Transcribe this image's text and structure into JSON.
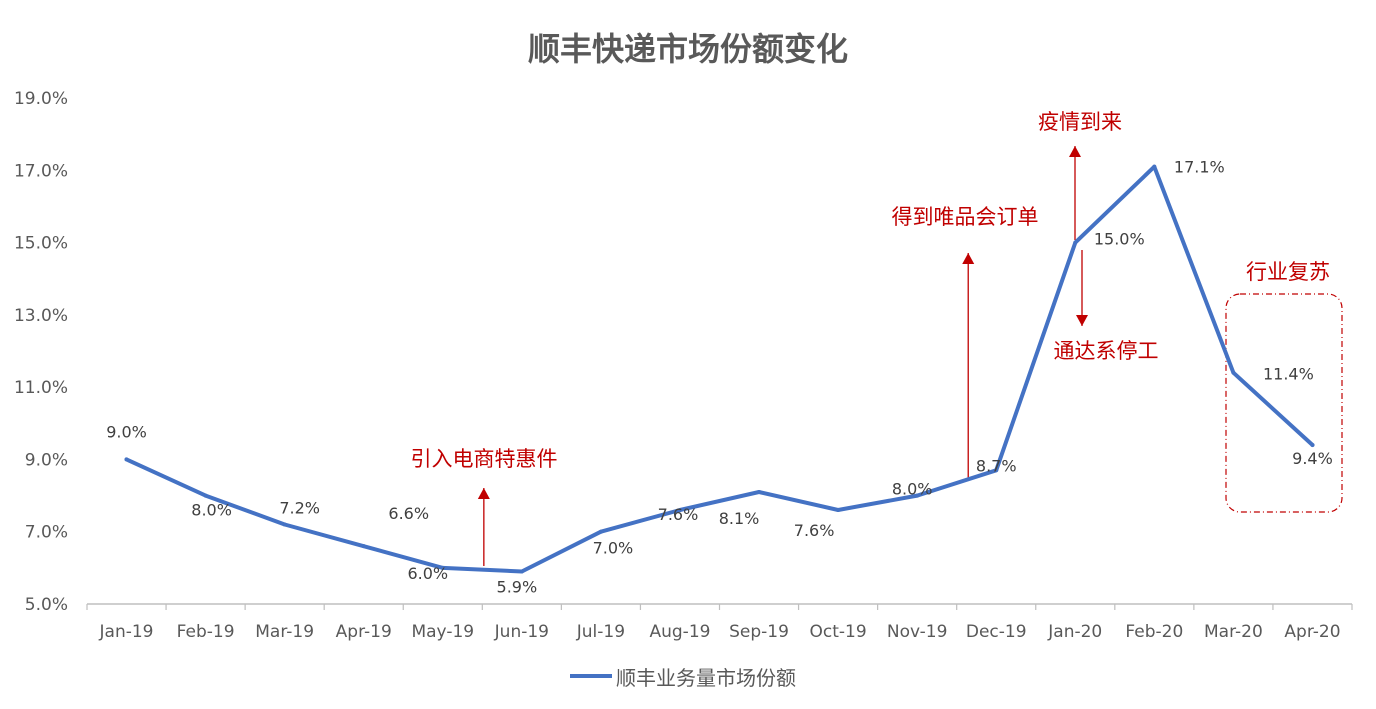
{
  "chart_data": {
    "type": "line",
    "title": "顺丰快递市场份额变化",
    "categories": [
      "Jan-19",
      "Feb-19",
      "Mar-19",
      "Apr-19",
      "May-19",
      "Jun-19",
      "Jul-19",
      "Aug-19",
      "Sep-19",
      "Oct-19",
      "Nov-19",
      "Dec-19",
      "Jan-20",
      "Feb-20",
      "Mar-20",
      "Apr-20"
    ],
    "series": [
      {
        "name": "顺丰业务量市场份额",
        "color": "#4472C4",
        "values": [
          9.0,
          8.0,
          7.2,
          6.6,
          6.0,
          5.9,
          7.0,
          7.6,
          8.1,
          7.6,
          8.0,
          8.7,
          15.0,
          17.1,
          11.4,
          9.4
        ],
        "labels": [
          "9.0%",
          "8.0%",
          "7.2%",
          "6.6%",
          "6.0%",
          "5.9%",
          "7.0%",
          "7.6%",
          "8.1%",
          "7.6%",
          "8.0%",
          "8.7%",
          "15.0%",
          "17.1%",
          "11.4%",
          "9.4%"
        ]
      }
    ],
    "yticks": [
      "5.0%",
      "7.0%",
      "9.0%",
      "11.0%",
      "13.0%",
      "15.0%",
      "17.0%",
      "19.0%"
    ],
    "ylim": [
      5,
      19
    ],
    "grid": false,
    "legend_position": "bottom",
    "annotations": [
      {
        "text": "引入电商特惠件",
        "at": "Jun-19",
        "direction": "up",
        "color": "#C00000"
      },
      {
        "text": "得到唯品会订单",
        "at": "Dec-19",
        "direction": "up",
        "color": "#C00000"
      },
      {
        "text": "疫情到来",
        "at": "Jan-20",
        "direction": "up",
        "color": "#C00000"
      },
      {
        "text": "通达系停工",
        "at": "Jan-20",
        "direction": "down",
        "color": "#C00000"
      },
      {
        "text": "行业复苏",
        "at": "Mar-20 – Apr-20",
        "style": "dashed-box",
        "color": "#C00000"
      }
    ]
  }
}
